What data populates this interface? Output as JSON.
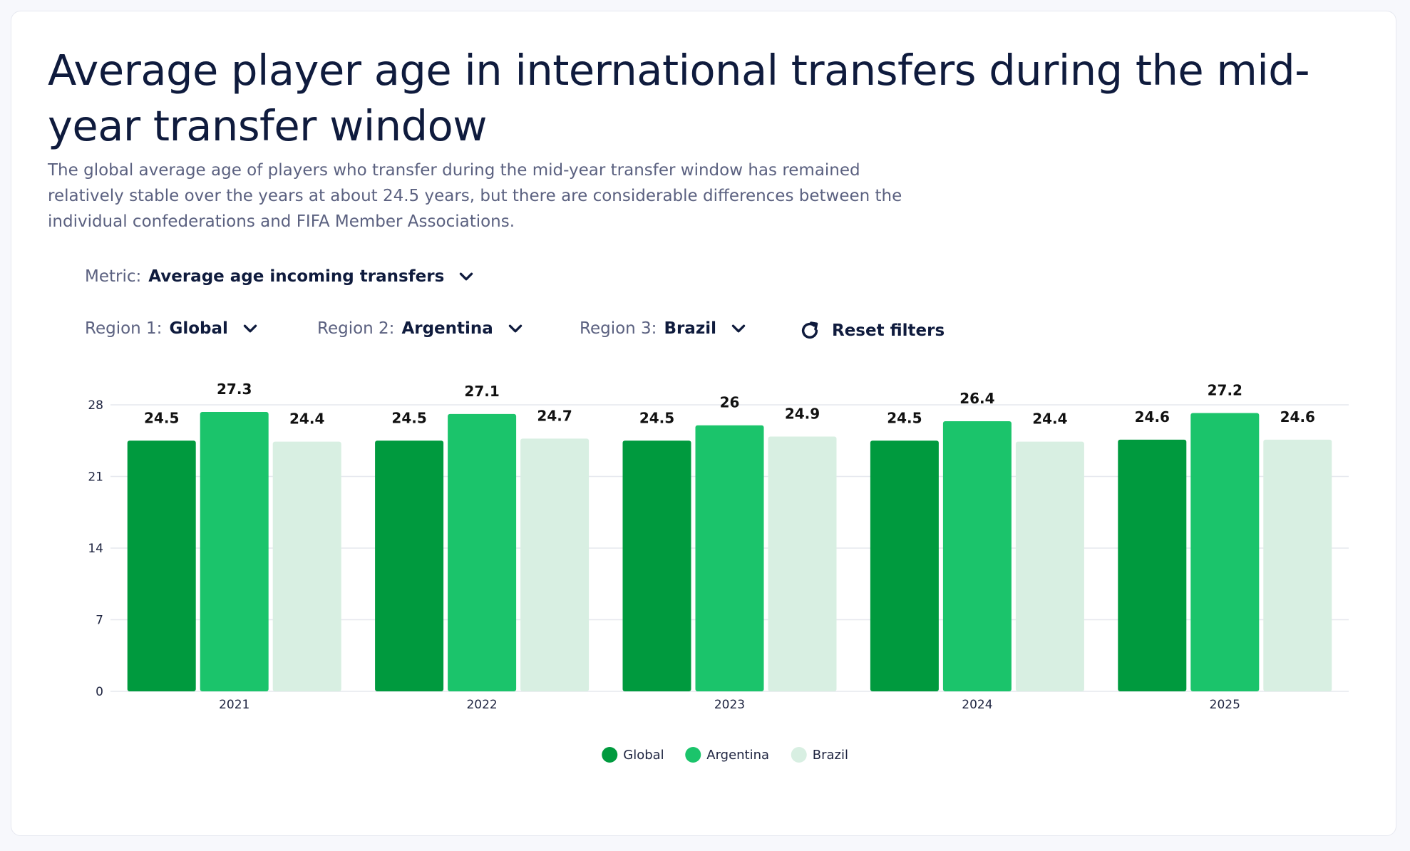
{
  "header": {
    "title": "Average player age in international transfers during the mid-year transfer window",
    "subtitle": "The global average age of players who transfer during the mid-year transfer window has remained relatively stable over the years at about 24.5 years, but there are considerable differences between the individual confederations and FIFA Member Associations."
  },
  "filters": {
    "metric": {
      "label": "Metric:",
      "value": "Average age incoming transfers",
      "icon": "chevron-down-icon"
    },
    "region1": {
      "label": "Region 1:",
      "value": "Global",
      "icon": "chevron-down-icon"
    },
    "region2": {
      "label": "Region 2:",
      "value": "Argentina",
      "icon": "chevron-down-icon"
    },
    "region3": {
      "label": "Region 3:",
      "value": "Brazil",
      "icon": "chevron-down-icon"
    },
    "reset": {
      "label": "Reset filters",
      "icon": "refresh-icon"
    }
  },
  "chart_data": {
    "type": "bar",
    "categories": [
      "2021",
      "2022",
      "2023",
      "2024",
      "2025"
    ],
    "series": [
      {
        "name": "Global",
        "values": [
          24.5,
          24.5,
          24.5,
          24.5,
          24.6
        ],
        "color": "#009a3e"
      },
      {
        "name": "Argentina",
        "values": [
          27.3,
          27.1,
          26,
          26.4,
          27.2
        ],
        "color": "#1bc46b"
      },
      {
        "name": "Brazil",
        "values": [
          24.4,
          24.7,
          24.9,
          24.4,
          24.6
        ],
        "color": "#d8efe2"
      }
    ],
    "ylim": [
      0,
      28
    ],
    "yticks": [
      0,
      7,
      14,
      21,
      28
    ],
    "grid": true,
    "legend": "bottom-center",
    "data_labels": true
  }
}
